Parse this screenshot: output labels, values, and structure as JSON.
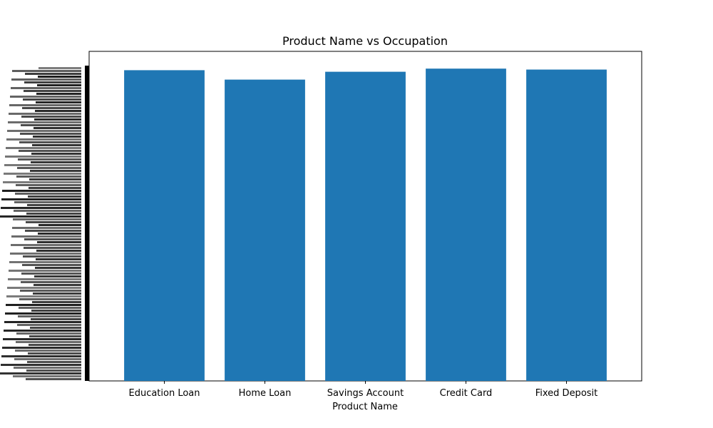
{
  "chart_data": {
    "type": "bar",
    "title": "Product Name vs Occupation",
    "xlabel": "Product Name",
    "ylabel": "",
    "categories": [
      "Education Loan",
      "Home Loan",
      "Savings Account",
      "Credit Card",
      "Fixed Deposit"
    ],
    "values": [
      0.99,
      0.96,
      0.985,
      0.995,
      0.992
    ],
    "ylim": [
      0,
      1.05
    ],
    "y_tick_labels_note": "",
    "grid": false,
    "legend": "none",
    "bar_color": "#1f77b4"
  }
}
